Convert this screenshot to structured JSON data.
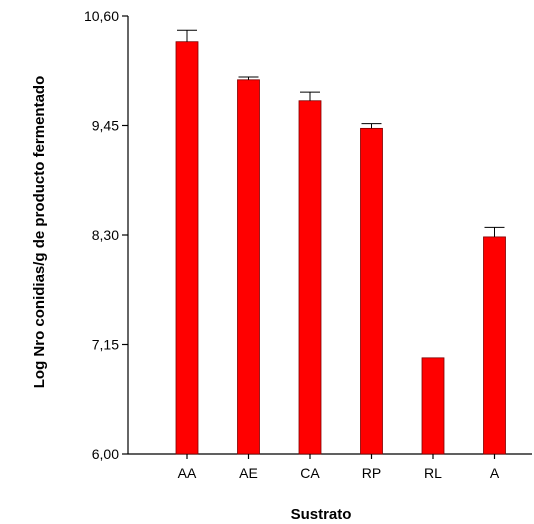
{
  "chart_data": {
    "type": "bar",
    "title": "",
    "xlabel": "Sustrato",
    "ylabel": "Log Nro conidias/g de producto fermentado",
    "categories": [
      "AA",
      "AE",
      "CA",
      "RP",
      "RL",
      "A"
    ],
    "values": [
      10.33,
      9.93,
      9.71,
      9.42,
      7.01,
      8.28
    ],
    "errors": [
      0.12,
      0.03,
      0.09,
      0.05,
      0.0,
      0.1
    ],
    "ylim": [
      6.0,
      10.6
    ],
    "yticks": [
      "6,00",
      "7,15",
      "8,30",
      "9,45",
      "10,60"
    ],
    "ytick_values": [
      6.0,
      7.15,
      8.3,
      9.45,
      10.6
    ],
    "grid": false,
    "bar_color": "#ff0000",
    "bar_edge_color": "#800000"
  }
}
